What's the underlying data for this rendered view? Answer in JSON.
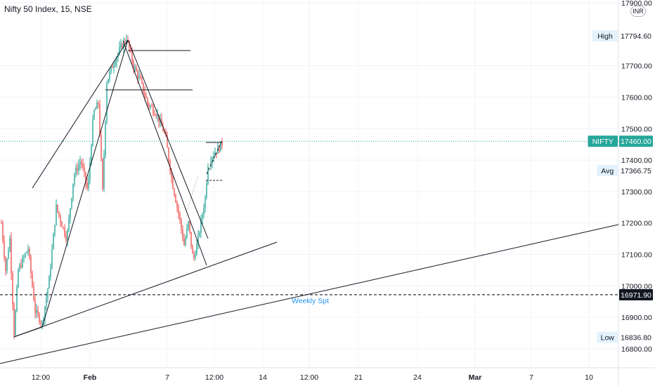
{
  "title": "Nifty 50 Index, 15, NSE",
  "currency": "INR",
  "colors": {
    "up": "#26a69a",
    "down": "#ef5350",
    "line": "#131722",
    "grid": "#f0f3fa",
    "axis_text": "#131722",
    "price_badge_bg": "#e3f2fd",
    "price_text": "#131722",
    "weekly_spt_text": "#2196f3"
  },
  "chart_data": {
    "type": "candlestick",
    "title": "Nifty 50 Index, 15, NSE",
    "y_axis": {
      "ylim": [
        16780,
        17900
      ],
      "ticks": [
        16800.0,
        16900.0,
        17000.0,
        17100.0,
        17200.0,
        17300.0,
        17400.0,
        17500.0,
        17600.0,
        17700.0,
        17900.0
      ]
    },
    "x_axis": {
      "tick_labels": [
        "12:00",
        "Feb",
        "7",
        "12:00",
        "14",
        "12:00",
        "21",
        "24",
        "Mar",
        "7",
        "10"
      ]
    },
    "price_labels": [
      {
        "label": "High",
        "value": "17794.60",
        "y": 17794.6,
        "highlight": false
      },
      {
        "label": "NIFTY",
        "value": "17460.00",
        "y": 17460.0,
        "highlight": true
      },
      {
        "label": "Avg",
        "value": "17366.75",
        "y": 17366.75,
        "highlight": false
      },
      {
        "label": "",
        "value": "16971.90",
        "y": 16971.9,
        "highlight": false,
        "dark": true
      },
      {
        "label": "Low",
        "value": "16836.80",
        "y": 16836.8,
        "highlight": false
      }
    ],
    "annotations": [
      {
        "text": "Weekly Spt",
        "y": 16971.9
      }
    ],
    "candles_summary": {
      "start": 17200,
      "low": 16836.8,
      "high": 17794.6,
      "last": 17460.0
    }
  }
}
